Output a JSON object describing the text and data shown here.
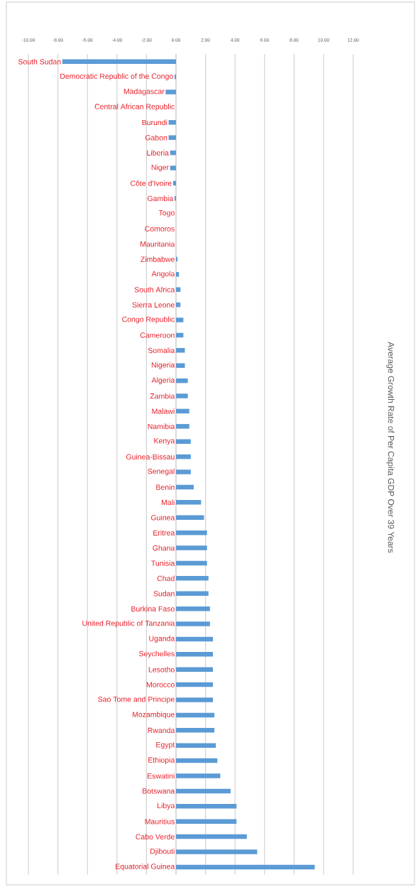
{
  "chart_data": {
    "type": "bar",
    "orientation": "horizontal",
    "annotations": [
      "Average Growth Rate of Per Capita GDP Over 39 Years"
    ],
    "categories": [
      "South Sudan",
      "Democratic Republic of the Congo",
      "Madagascar",
      "Central African Republic",
      "Burundi",
      "Gabon",
      "Liberia",
      "Niger",
      "Côte d'Ivoire",
      "Gambia",
      "Togo",
      "Comoros",
      "Mauritania",
      "Zimbabwe",
      "Angola",
      "South Africa",
      "Sierra Leone",
      "Congo Republic",
      "Cameroon",
      "Somalia",
      "Nigeria",
      "Algeria",
      "Zambia",
      "Malawi",
      "Namibia",
      "Kenya",
      "Guinea-Bissau",
      "Senegal",
      "Benin",
      "Mali",
      "Guinea",
      "Eritrea",
      "Ghana",
      "Tunisia",
      "Chad",
      "Sudan",
      "Burkina Faso",
      "United Republic of Tanzania",
      "Uganda",
      "Seychelles",
      "Lesotho",
      "Morocco",
      "Sao Tome and Principe",
      "Mozambique",
      "Rwanda",
      "Egypt",
      "Ethiopia",
      "Eswatini",
      "Botswana",
      "Libya",
      "Mauritius",
      "Cabo Verde",
      "Djibouti",
      "Equatorial Guinea"
    ],
    "values": [
      -7.7,
      -0.1,
      -0.7,
      null,
      -0.5,
      -0.5,
      -0.4,
      -0.4,
      -0.2,
      -0.1,
      0,
      0,
      0,
      0.1,
      0.2,
      0.3,
      0.3,
      0.5,
      0.5,
      0.6,
      0.6,
      0.8,
      0.8,
      0.9,
      0.9,
      1.0,
      1.0,
      1.0,
      1.2,
      1.7,
      1.9,
      2.1,
      2.1,
      2.1,
      2.2,
      2.2,
      2.3,
      2.3,
      2.5,
      2.5,
      2.5,
      2.5,
      2.5,
      2.6,
      2.6,
      2.7,
      2.8,
      3.0,
      3.7,
      4.1,
      4.1,
      4.8,
      5.5,
      9.4
    ],
    "color": "#5b9bd5",
    "xlim": [
      -10,
      12
    ],
    "xticks": [
      {
        "value": -10,
        "label": "-10.00"
      },
      {
        "value": -8,
        "label": "-8.00"
      },
      {
        "value": -6,
        "label": "-6.00"
      },
      {
        "value": -4,
        "label": "-4.00"
      },
      {
        "value": -2,
        "label": "-2.00"
      },
      {
        "value": 0,
        "label": "0.00"
      },
      {
        "value": 2,
        "label": "2.00"
      },
      {
        "value": 4,
        "label": "4.00"
      },
      {
        "value": 6,
        "label": "6.00"
      },
      {
        "value": 8,
        "label": "8.00"
      },
      {
        "value": 10,
        "label": "10.00"
      },
      {
        "value": 12,
        "label": "12.00"
      }
    ],
    "grid": "x"
  }
}
